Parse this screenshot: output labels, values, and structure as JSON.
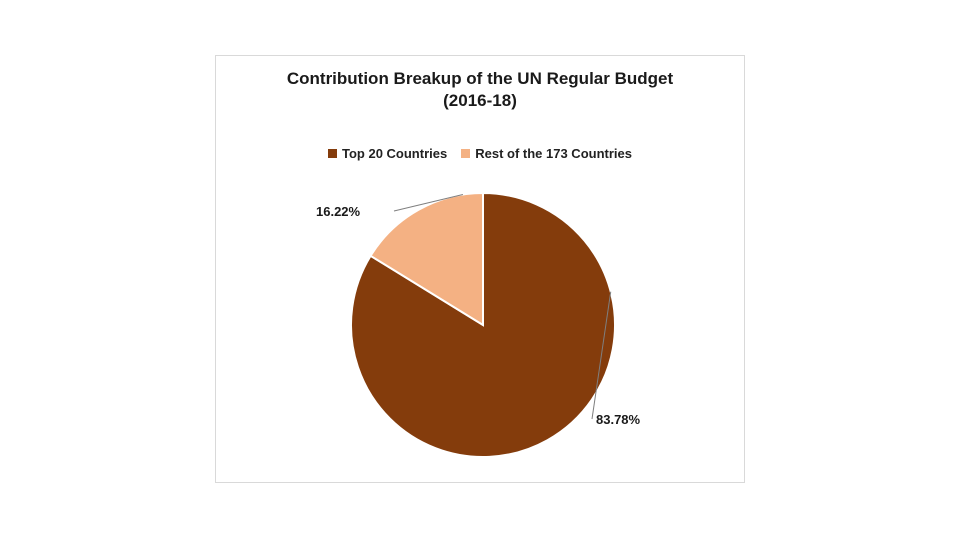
{
  "chart_data": {
    "type": "pie",
    "title_line1": "Contribution Breakup of the UN Regular Budget",
    "title_line2": "(2016-18)",
    "legend_position": "top",
    "slices": [
      {
        "label": "Top 20 Countries",
        "value": 83.78,
        "value_label": "83.78%",
        "color": "#843c0c"
      },
      {
        "label": "Rest of the 173 Countries",
        "value": 16.22,
        "value_label": "16.22%",
        "color": "#f4b183"
      }
    ]
  }
}
